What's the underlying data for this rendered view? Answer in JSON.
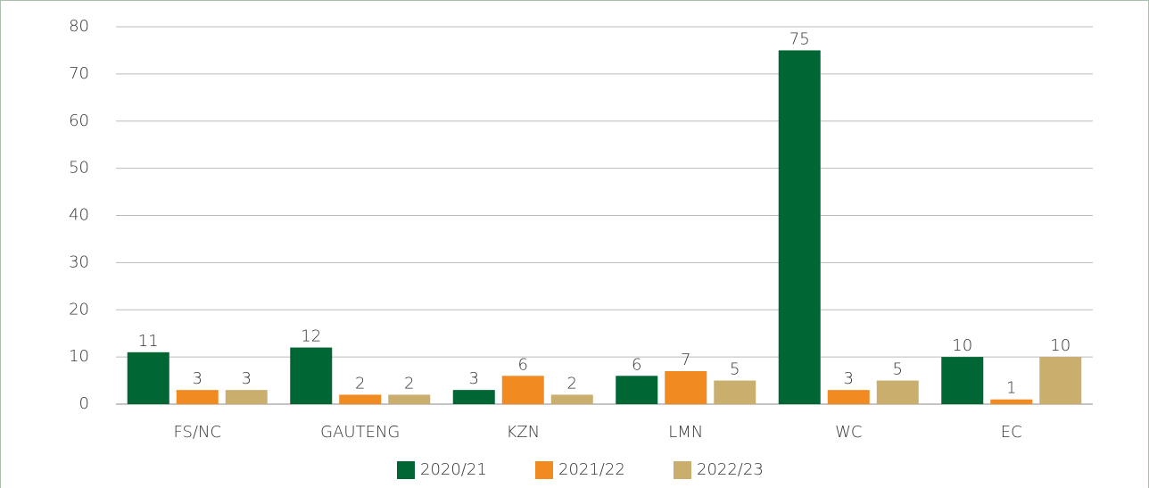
{
  "chart_data": {
    "type": "bar",
    "categories": [
      "FS/NC",
      "GAUTENG",
      "KZN",
      "LMN",
      "WC",
      "EC"
    ],
    "series": [
      {
        "name": "2020/21",
        "color": "#006633",
        "values": [
          11,
          12,
          3,
          6,
          75,
          10
        ]
      },
      {
        "name": "2021/22",
        "color": "#f28a22",
        "values": [
          3,
          2,
          6,
          7,
          3,
          1
        ]
      },
      {
        "name": "2022/23",
        "color": "#c9ae6e",
        "values": [
          3,
          2,
          2,
          5,
          5,
          10
        ]
      }
    ],
    "ylim": [
      0,
      80
    ],
    "yticks": [
      0,
      10,
      20,
      30,
      40,
      50,
      60,
      70,
      80
    ],
    "grid": true,
    "legend": "bottom"
  }
}
